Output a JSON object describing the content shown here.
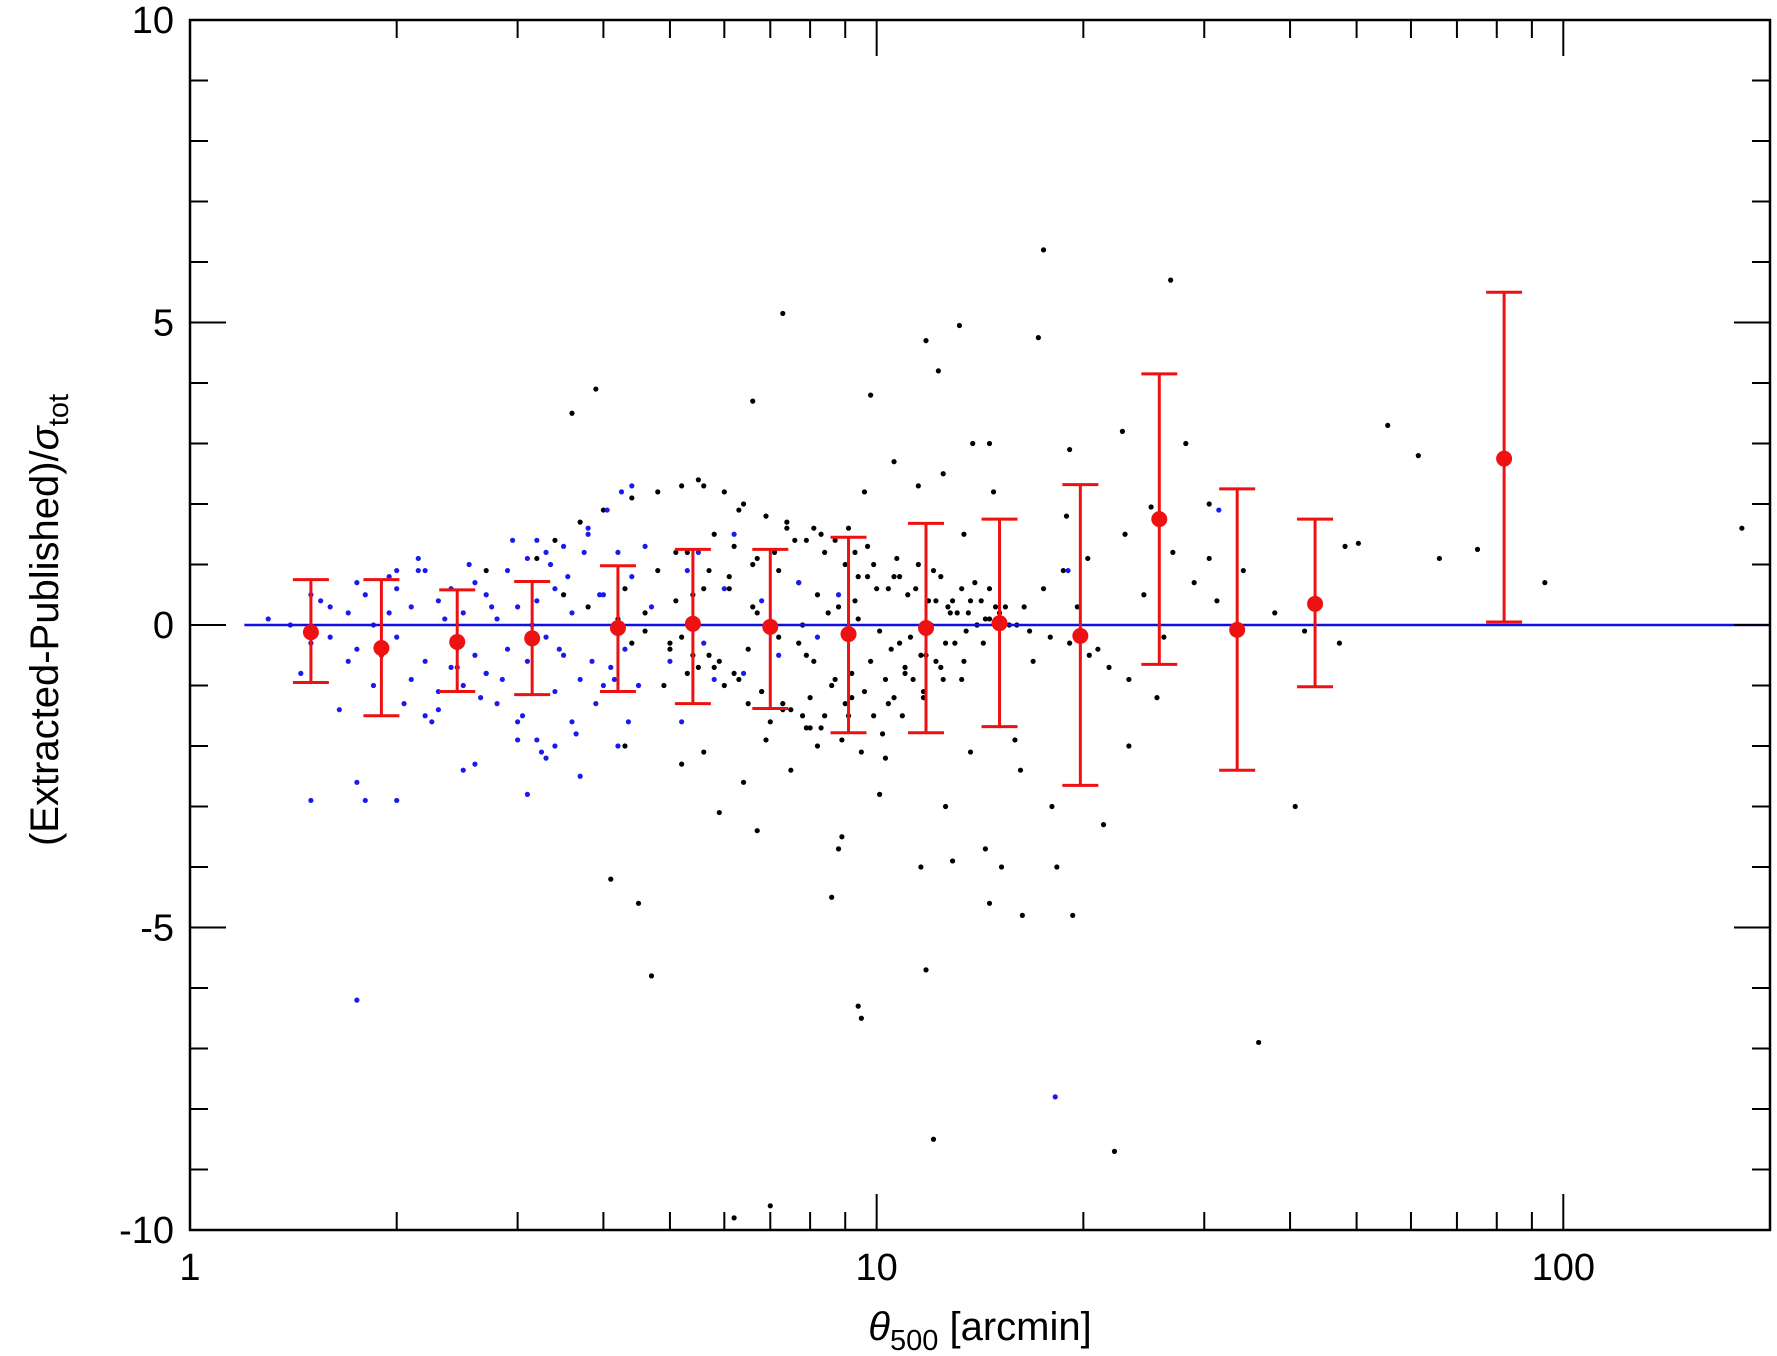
{
  "chart_data": {
    "type": "scatter",
    "title": "",
    "xlabel": {
      "symbol": "θ",
      "subscript": "500",
      "unit": " [arcmin]"
    },
    "ylabel": {
      "text": "(Extracted-Published)/",
      "symbol": "σ",
      "subscript": "tot"
    },
    "x_scale": "log",
    "xlim": [
      1,
      200
    ],
    "ylim": [
      -10,
      10
    ],
    "x_ticks": [
      1,
      10,
      100
    ],
    "x_tick_labels": [
      "1",
      "10",
      "100"
    ],
    "y_ticks": [
      -10,
      -5,
      0,
      5,
      10
    ],
    "y_tick_labels": [
      "-10",
      "-5",
      "0",
      "5",
      "10"
    ],
    "grid": false,
    "reference_line": {
      "y": 0,
      "x_range": [
        1.2,
        200
      ],
      "color": "#1010e0"
    },
    "colors": {
      "black_points": "#000000",
      "blue_points": "#1a1aee",
      "binned": "#ee1111"
    },
    "binned_means": {
      "x": [
        1.5,
        1.9,
        2.45,
        3.15,
        4.2,
        5.4,
        7.0,
        9.1,
        11.8,
        15.1,
        19.8,
        25.8,
        33.5,
        43.5,
        82
      ],
      "y": [
        -0.12,
        -0.38,
        -0.28,
        -0.22,
        -0.05,
        0.02,
        -0.03,
        -0.15,
        -0.05,
        0.03,
        -0.18,
        1.75,
        -0.08,
        0.35,
        2.75
      ],
      "err_low": [
        -0.95,
        -1.5,
        -1.1,
        -1.15,
        -1.1,
        -1.3,
        -1.38,
        -1.78,
        -1.78,
        -1.68,
        -2.65,
        -0.65,
        -2.4,
        -1.02,
        0.05
      ],
      "err_high": [
        0.75,
        0.75,
        0.58,
        0.72,
        0.98,
        1.25,
        1.25,
        1.45,
        1.68,
        1.75,
        2.32,
        4.15,
        2.25,
        1.75,
        5.5
      ]
    },
    "series": [
      {
        "color": "black",
        "x": [
          3.9,
          5.2,
          9.5,
          12.1,
          13.2,
          14.6,
          17.5,
          19.1,
          22.8,
          22.2,
          26.8,
          30.5,
          28.2,
          25.1,
          20.3,
          17.2,
          15.2,
          13.8,
          12.3,
          11.8,
          13.4,
          10.6,
          9.1,
          8.2,
          6.6,
          5.5,
          4.3,
          3.6,
          7.3,
          9.8,
          12.5,
          9.6,
          11.5,
          14.8,
          18.9,
          23.0,
          27.0,
          30.5,
          34.2,
          36.0,
          42.0,
          47.2,
          50.3,
          55.5,
          61.5,
          66.0,
          75.0,
          94.0,
          182.0,
          4.1,
          4.7,
          6.2,
          7.0,
          8.6,
          9.4,
          11.8,
          14.6,
          16.3,
          18.3,
          19.3,
          21.4,
          23.3,
          25.6,
          40.7,
          48.1,
          18.0,
          16.2,
          15.9,
          8.9,
          10.1,
          12.9,
          14.4,
          4.5,
          5.9,
          6.4,
          6.7,
          7.5,
          8.8,
          10.3,
          11.6,
          13.7,
          12.6,
          2.7,
          3.2,
          3.4,
          3.7,
          4.0,
          4.4,
          4.8,
          5.2,
          5.6,
          6.0,
          6.4,
          6.9,
          7.4,
          7.9,
          8.4,
          9.0,
          9.7,
          10.4,
          11.1,
          11.9,
          12.7,
          13.6,
          14.6,
          15.6,
          16.7,
          17.9,
          19.1,
          20.4,
          21.8,
          23.3,
          3.5,
          3.8,
          4.2,
          4.6,
          5.0,
          5.4,
          5.8,
          6.3,
          6.8,
          7.3,
          7.8,
          8.3,
          8.9,
          9.5,
          10.2,
          10.9,
          11.7,
          12.5,
          13.4,
          14.3,
          15.3,
          16.4,
          17.5,
          18.7,
          5.1,
          5.7,
          6.1,
          6.6,
          7.1,
          7.7,
          8.1,
          8.7,
          9.2,
          9.9,
          10.6,
          11.3,
          12.2,
          13.0,
          14.0,
          14.9,
          4.9,
          5.3,
          5.9,
          6.5,
          7.2,
          7.8,
          8.5,
          9.3,
          10.0,
          10.8,
          11.5,
          12.4,
          13.3,
          14.2,
          15.1,
          16.0,
          4.3,
          4.8,
          5.3,
          5.8,
          6.2,
          6.7,
          7.2,
          7.7,
          8.2,
          8.8,
          9.4,
          10.1,
          10.8,
          11.6,
          12.4,
          13.3,
          5.0,
          5.5,
          6.0,
          6.5,
          7.0,
          7.5,
          8.0,
          8.6,
          9.2,
          9.8,
          10.5,
          11.2,
          12.0,
          12.8,
          13.7,
          14.6,
          4.6,
          5.1,
          5.6,
          6.1,
          6.6,
          7.1,
          7.6,
          8.1,
          8.7,
          9.3,
          9.9,
          10.6,
          11.4,
          12.2,
          13.1,
          14.0,
          5.2,
          5.7,
          6.2,
          6.8,
          7.3,
          7.9,
          8.4,
          9.0,
          9.6,
          10.3,
          11.0,
          11.8,
          12.6,
          13.5,
          14.4,
          15.4,
          6.3,
          7.4,
          8.3,
          9.7,
          10.7,
          12.1,
          13.9,
          5.6,
          6.9,
          8.0,
          9.1,
          10.4,
          11.7,
          4.4,
          5.4,
          6.7,
          7.9,
          9.4,
          11.0,
          12.9,
          16.9,
          19.6,
          21.0,
          24.5,
          26.2,
          29.0,
          31.3,
          38.0
        ],
        "y": [
          3.9,
          -2.3,
          -6.5,
          -8.5,
          4.95,
          3.0,
          6.2,
          2.9,
          3.2,
          -8.7,
          5.7,
          2.0,
          3.0,
          1.95,
          1.1,
          4.75,
          -4.0,
          3.0,
          4.2,
          4.7,
          1.5,
          2.7,
          1.6,
          -2.0,
          3.7,
          2.4,
          -2.0,
          3.5,
          5.15,
          3.8,
          2.5,
          2.2,
          2.3,
          2.2,
          1.8,
          1.5,
          1.2,
          1.1,
          0.9,
          -6.9,
          -0.1,
          -0.3,
          1.35,
          3.3,
          2.8,
          1.1,
          1.25,
          0.7,
          1.6,
          -4.2,
          -5.8,
          -9.8,
          -9.6,
          -4.5,
          -6.3,
          -5.7,
          -4.6,
          -4.8,
          -4.0,
          -4.8,
          -3.3,
          -2.0,
          -1.2,
          -3.0,
          1.3,
          -3.0,
          -2.4,
          -1.9,
          -3.5,
          -2.8,
          -3.9,
          -3.7,
          -4.6,
          -3.1,
          -2.6,
          -3.4,
          -2.4,
          -3.7,
          -2.2,
          -4.0,
          -2.1,
          -3.0,
          0.9,
          1.1,
          1.4,
          1.7,
          1.9,
          2.1,
          2.2,
          2.3,
          2.3,
          2.2,
          2.0,
          1.8,
          1.6,
          1.4,
          1.2,
          1.0,
          0.8,
          0.6,
          0.5,
          0.4,
          0.3,
          0.2,
          0.1,
          0.0,
          -0.1,
          -0.2,
          -0.3,
          -0.5,
          -0.7,
          -0.9,
          0.5,
          0.3,
          0.1,
          -0.1,
          -0.3,
          -0.5,
          -0.7,
          -0.9,
          -1.1,
          -1.3,
          -1.5,
          -1.7,
          -1.9,
          -2.1,
          -1.8,
          -1.5,
          -1.2,
          -0.9,
          -0.6,
          -0.3,
          0.0,
          0.3,
          0.6,
          0.9,
          1.2,
          0.9,
          0.6,
          0.3,
          0.0,
          -0.3,
          -0.6,
          -0.9,
          -1.2,
          -1.5,
          -1.2,
          -0.9,
          -0.6,
          -0.3,
          0.0,
          0.3,
          -1.0,
          -0.8,
          -0.6,
          -0.4,
          -0.2,
          0.0,
          0.2,
          0.4,
          0.6,
          0.8,
          1.0,
          0.8,
          0.6,
          0.4,
          0.2,
          0.0,
          0.6,
          0.9,
          1.2,
          1.5,
          1.3,
          1.1,
          0.9,
          0.7,
          0.5,
          0.3,
          0.1,
          -0.1,
          -0.3,
          -0.5,
          -0.7,
          -0.9,
          -0.4,
          -0.7,
          -1.0,
          -1.3,
          -1.6,
          -1.4,
          -1.2,
          -1.0,
          -0.8,
          -0.6,
          -0.4,
          -0.2,
          0.0,
          0.2,
          0.4,
          0.6,
          0.2,
          0.4,
          0.6,
          0.8,
          1.0,
          1.2,
          1.4,
          1.6,
          1.4,
          1.2,
          1.0,
          0.8,
          0.6,
          0.4,
          0.2,
          0.0,
          -0.2,
          -0.5,
          -0.8,
          -1.1,
          -1.4,
          -1.7,
          -1.5,
          -1.3,
          -1.1,
          -0.9,
          -0.7,
          -0.5,
          -0.3,
          -0.1,
          0.1,
          0.3,
          1.9,
          1.7,
          1.5,
          1.3,
          1.1,
          0.9,
          0.7,
          -2.1,
          -1.9,
          -1.7,
          -1.5,
          -1.3,
          -1.1,
          -0.3,
          0.5,
          0.2,
          -0.5,
          0.8,
          -0.8,
          0.4,
          -0.6,
          0.3,
          -0.4,
          0.5,
          -0.2,
          0.7,
          0.4,
          0.2
        ]
      },
      {
        "color": "blue",
        "x": [
          1.3,
          1.4,
          1.5,
          1.5,
          1.6,
          1.6,
          1.7,
          1.7,
          1.75,
          1.8,
          1.85,
          1.9,
          1.95,
          2.0,
          2.0,
          2.1,
          2.1,
          2.2,
          2.2,
          2.3,
          2.3,
          2.4,
          2.4,
          2.5,
          2.5,
          2.6,
          2.6,
          2.7,
          2.7,
          2.8,
          2.8,
          2.9,
          2.9,
          3.0,
          3.0,
          3.1,
          3.1,
          3.2,
          3.2,
          3.3,
          3.3,
          3.4,
          3.4,
          3.5,
          3.5,
          3.6,
          3.7,
          3.8,
          3.9,
          4.0,
          4.1,
          4.2,
          4.3,
          4.4,
          4.5,
          4.7,
          5.0,
          5.3,
          5.6,
          6.0,
          6.4,
          6.8,
          7.2,
          7.7,
          8.2,
          8.8,
          1.45,
          1.55,
          1.65,
          1.75,
          1.85,
          1.95,
          2.05,
          2.15,
          2.25,
          2.35,
          2.45,
          2.55,
          2.65,
          2.75,
          2.85,
          2.95,
          3.05,
          3.15,
          3.25,
          3.35,
          3.45,
          3.55,
          3.65,
          3.75,
          3.85,
          3.95,
          4.05,
          4.15,
          4.25,
          4.35,
          1.5,
          1.75,
          1.8,
          2.0,
          2.15,
          2.5,
          3.1,
          3.2,
          3.3,
          3.7,
          4.4,
          1.75,
          18.2,
          31.5,
          19.0,
          5.5,
          6.2,
          4.2,
          3.8,
          2.7,
          2.2,
          2.0,
          2.3,
          2.6,
          3.0,
          3.4,
          3.6,
          4.0,
          4.6,
          5.2,
          5.8
        ],
        "y": [
          0.1,
          0.0,
          -0.3,
          0.5,
          -0.2,
          0.3,
          -0.6,
          0.2,
          -0.4,
          0.5,
          0.0,
          -0.5,
          0.8,
          -0.2,
          0.6,
          -0.9,
          0.3,
          -0.6,
          0.9,
          -1.1,
          0.4,
          -0.7,
          0.6,
          -1.0,
          0.2,
          -0.5,
          0.7,
          -0.8,
          0.5,
          -1.3,
          0.1,
          -0.4,
          0.9,
          -1.6,
          0.3,
          -0.6,
          1.1,
          -1.9,
          0.4,
          -0.2,
          1.2,
          -1.1,
          0.6,
          -0.5,
          1.3,
          0.2,
          -0.9,
          1.5,
          -1.3,
          0.5,
          -0.7,
          1.2,
          -0.4,
          0.8,
          -1.0,
          0.3,
          -0.6,
          0.9,
          -0.3,
          0.6,
          -0.8,
          0.4,
          -0.5,
          0.7,
          -0.2,
          0.5,
          -0.8,
          0.4,
          -1.4,
          0.7,
          -1.0,
          0.2,
          -1.3,
          0.9,
          -1.6,
          0.1,
          -0.7,
          1.0,
          -1.2,
          0.3,
          -0.9,
          1.4,
          -1.5,
          0.0,
          -2.1,
          1.0,
          -0.4,
          0.8,
          -1.8,
          1.2,
          -0.6,
          0.5,
          1.9,
          -0.9,
          2.2,
          -1.6,
          -2.9,
          -2.6,
          -2.9,
          -2.9,
          1.1,
          -2.4,
          -2.8,
          1.4,
          -2.2,
          -2.5,
          2.3,
          -6.2,
          -7.8,
          1.9,
          0.9,
          1.2,
          1.5,
          -2.0,
          1.6,
          -0.8,
          -1.5,
          0.9,
          -1.4,
          -2.3,
          -1.9,
          -2.0,
          -1.6,
          -1.0,
          1.3,
          -1.6,
          -0.9
        ]
      }
    ]
  }
}
